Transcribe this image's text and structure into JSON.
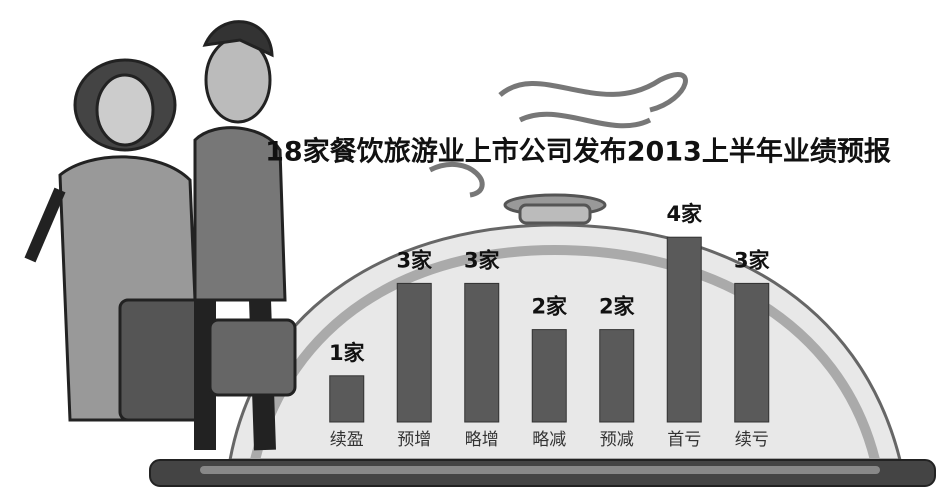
{
  "chart_data": {
    "type": "bar",
    "title": "18家餐饮旅游业上市公司发布2013上半年业绩预报",
    "categories": [
      "续盈",
      "预增",
      "略增",
      "略减",
      "预减",
      "首亏",
      "续亏"
    ],
    "values": [
      1,
      3,
      3,
      2,
      2,
      4,
      3
    ],
    "value_labels": [
      "1家",
      "3家",
      "3家",
      "2家",
      "2家",
      "4家",
      "3家"
    ],
    "color": "#5a5a5a"
  }
}
